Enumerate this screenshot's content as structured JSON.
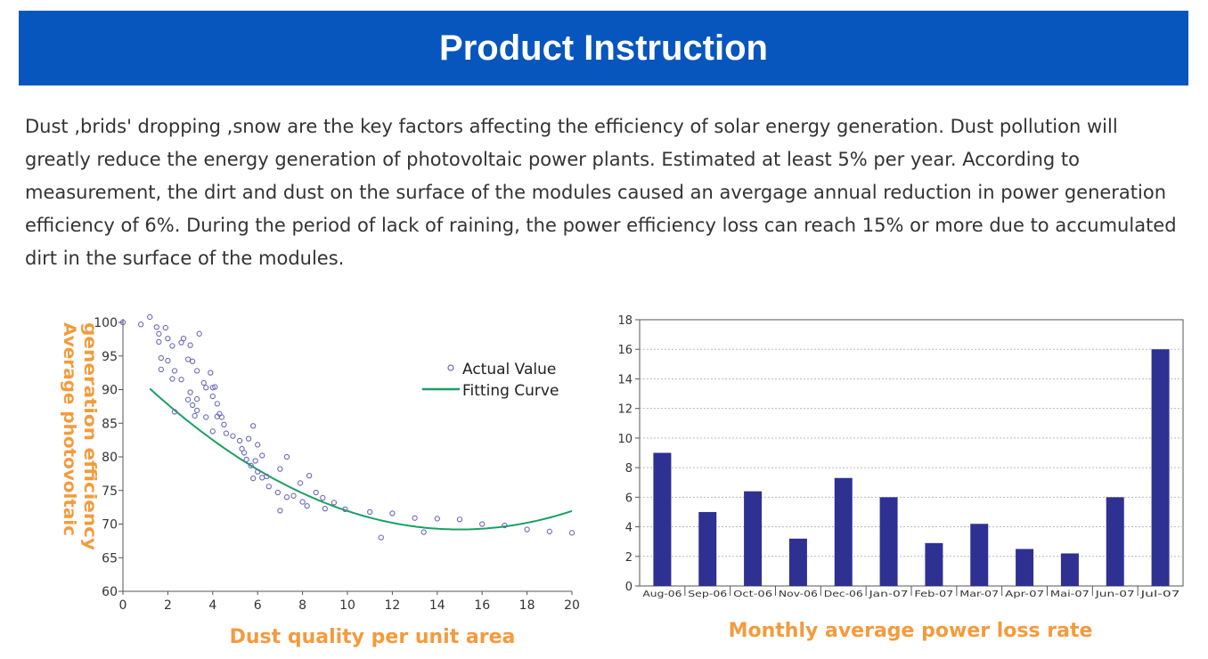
{
  "header": {
    "title": "Product Instruction"
  },
  "description": {
    "text": "Dust ,brids' dropping ,snow are the key factors affecting the efficiency of solar energy generation. Dust pollution will greatly reduce the energy generation of photovoltaic power plants. Estimated at least 5% per year. According to measurement, the dirt and dust on the surface of the modules caused an avergage annual reduction in power generation efficiency of 6%. During the period of lack of raining, the power efficiency loss can reach 15% or more due to accumulated dirt in the surface of the modules."
  },
  "chart_data": [
    {
      "type": "scatter",
      "title": "Dust quality per unit area",
      "xlabel": "Dust quality per unit area",
      "ylabel_line1": "Average photovoltaic",
      "ylabel_line2": "generation efficiency",
      "xlim": [
        0,
        20
      ],
      "ylim": [
        60,
        100
      ],
      "xticks": [
        0,
        2,
        4,
        6,
        8,
        10,
        12,
        14,
        16,
        18,
        20
      ],
      "yticks": [
        60,
        65,
        70,
        75,
        80,
        85,
        90,
        95,
        100
      ],
      "legend": [
        "Actual Value",
        "Fitting Curve"
      ],
      "legend_position": "top-right",
      "colors": {
        "points": "#6b68b8",
        "curve": "#1aa064"
      },
      "series": [
        {
          "name": "Actual Value",
          "points": [
            [
              0,
              100
            ],
            [
              0.8,
              99.7
            ],
            [
              1.2,
              100.8
            ],
            [
              1.5,
              99.3
            ],
            [
              1.9,
              99.2
            ],
            [
              1.6,
              98.3
            ],
            [
              2.0,
              97.6
            ],
            [
              1.6,
              97.1
            ],
            [
              2.2,
              96.5
            ],
            [
              2.6,
              97.0
            ],
            [
              2.7,
              97.6
            ],
            [
              3.0,
              96.6
            ],
            [
              3.4,
              98.3
            ],
            [
              1.7,
              94.7
            ],
            [
              2.0,
              94.3
            ],
            [
              2.9,
              94.5
            ],
            [
              3.1,
              94.2
            ],
            [
              1.7,
              93.0
            ],
            [
              2.3,
              92.8
            ],
            [
              2.6,
              91.5
            ],
            [
              3.3,
              92.8
            ],
            [
              3.9,
              92.5
            ],
            [
              2.2,
              91.6
            ],
            [
              3.6,
              91.0
            ],
            [
              3.7,
              90.3
            ],
            [
              4.0,
              90.3
            ],
            [
              4.1,
              90.4
            ],
            [
              4.0,
              89.0
            ],
            [
              3.0,
              89.6
            ],
            [
              3.3,
              88.6
            ],
            [
              2.9,
              88.5
            ],
            [
              4.2,
              87.9
            ],
            [
              2.3,
              86.7
            ],
            [
              3.1,
              87.7
            ],
            [
              3.3,
              86.9
            ],
            [
              3.2,
              86.1
            ],
            [
              3.7,
              85.9
            ],
            [
              4.3,
              86.4
            ],
            [
              4.2,
              86.0
            ],
            [
              4.4,
              85.9
            ],
            [
              4.5,
              84.8
            ],
            [
              4.0,
              83.8
            ],
            [
              4.6,
              83.5
            ],
            [
              4.9,
              83.1
            ],
            [
              5.2,
              82.4
            ],
            [
              5.8,
              84.6
            ],
            [
              5.6,
              82.7
            ],
            [
              6.0,
              81.8
            ],
            [
              5.3,
              81.2
            ],
            [
              5.4,
              80.6
            ],
            [
              5.5,
              79.6
            ],
            [
              5.9,
              79.4
            ],
            [
              5.7,
              78.7
            ],
            [
              6.2,
              80.2
            ],
            [
              6.0,
              77.8
            ],
            [
              5.8,
              76.8
            ],
            [
              6.2,
              76.9
            ],
            [
              6.4,
              77.1
            ],
            [
              6.5,
              75.6
            ],
            [
              6.9,
              74.7
            ],
            [
              7.3,
              80.0
            ],
            [
              7.0,
              78.2
            ],
            [
              7.9,
              76.1
            ],
            [
              8.3,
              77.2
            ],
            [
              7.3,
              74.0
            ],
            [
              7.6,
              74.2
            ],
            [
              8.0,
              73.3
            ],
            [
              8.2,
              72.7
            ],
            [
              8.6,
              74.7
            ],
            [
              8.9,
              73.9
            ],
            [
              9.0,
              72.3
            ],
            [
              9.4,
              73.2
            ],
            [
              7.0,
              72.0
            ],
            [
              9.9,
              72.2
            ],
            [
              11.0,
              71.8
            ],
            [
              11.5,
              68.0
            ],
            [
              12.0,
              71.6
            ],
            [
              13.0,
              70.9
            ],
            [
              13.4,
              68.8
            ],
            [
              14.0,
              70.8
            ],
            [
              15.0,
              70.7
            ],
            [
              16.0,
              70.0
            ],
            [
              17.0,
              69.8
            ],
            [
              18.0,
              69.2
            ],
            [
              19.0,
              68.9
            ],
            [
              20.0,
              68.7
            ]
          ]
        },
        {
          "name": "Fitting Curve",
          "function": "y = 0.11*(x-15)^2 + 69.2",
          "x_range": [
            1.2,
            20
          ]
        }
      ]
    },
    {
      "type": "bar",
      "title": "Monthly average power loss rate",
      "xlabel": "Monthly average power loss rate",
      "ylabel": "",
      "ylim": [
        0,
        18
      ],
      "yticks": [
        0,
        2,
        4,
        6,
        8,
        10,
        12,
        14,
        16,
        18
      ],
      "grid": true,
      "colors": {
        "bars": "#2e3192"
      },
      "categories": [
        "Aug-06",
        "Sep-06",
        "Oct-06",
        "Nov-06",
        "Dec-06",
        "Jan-07",
        "Feb-07",
        "Mar-07",
        "Apr-07",
        "Mai-07",
        "Jun-07",
        "Jul-07"
      ],
      "values": [
        9.0,
        5.0,
        6.4,
        3.2,
        7.3,
        6.0,
        2.9,
        4.2,
        2.5,
        2.2,
        6.0,
        16.0
      ]
    }
  ]
}
